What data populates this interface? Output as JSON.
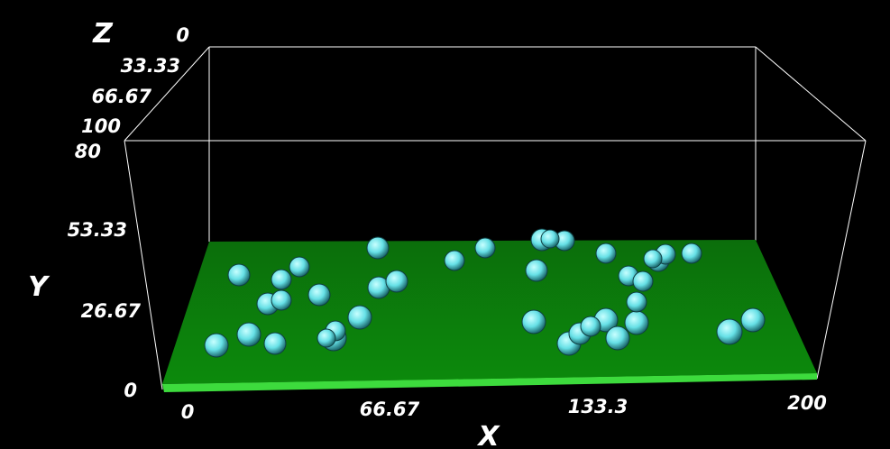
{
  "scene": {
    "background": "#000000",
    "box_color": "#ffffff",
    "plate_color": "#0a7a0a",
    "plate_edge_color": "#3ddb3d",
    "particle_color": "#66e6e6",
    "particle_count": 39
  },
  "axes": {
    "x": {
      "label": "X",
      "ticks": [
        "0",
        "66.67",
        "133.3",
        "200"
      ]
    },
    "y": {
      "label": "Y",
      "ticks": [
        "0",
        "26.67",
        "53.33",
        "80"
      ]
    },
    "z": {
      "label": "Z",
      "ticks": [
        "0",
        "33.33",
        "66.67",
        "100"
      ]
    }
  }
}
